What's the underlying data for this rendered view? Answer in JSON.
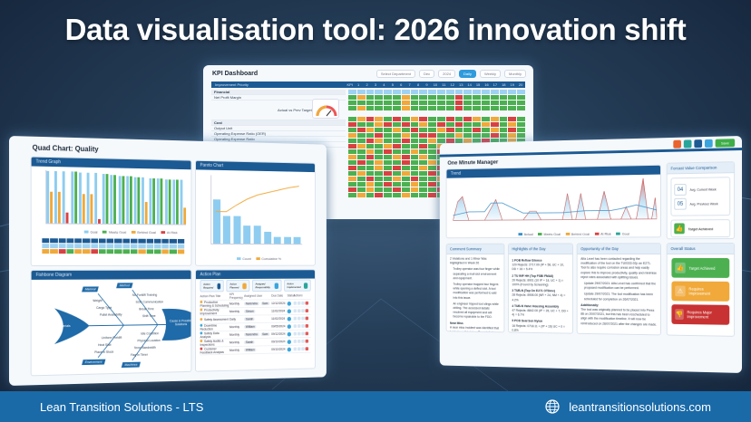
{
  "headline": "Data visualisation tool: 2026 innovation shift",
  "footer": {
    "company": "Lean Transition Solutions - LTS",
    "website": "leantransitionsolutions.com",
    "icon": "globe-icon"
  },
  "colors": {
    "brand_blue": "#1c5a93",
    "footer_blue": "#1a6aa8",
    "green": "#4cb050",
    "amber": "#f0a93a",
    "red": "#d94141",
    "light_blue": "#8ecdf0"
  },
  "kpi_dashboard": {
    "title": "KPI Dashboard",
    "filters": {
      "department_placeholder": "Select Department",
      "month": "Dec",
      "year": "2024",
      "views": [
        "Daily",
        "Weekly",
        "Monthly"
      ],
      "active_view": "Daily"
    },
    "header": {
      "label": "Improvement Priority",
      "kpi_col": "KPI",
      "days": [
        "1",
        "2",
        "3",
        "4",
        "5",
        "6",
        "7",
        "8",
        "9",
        "10",
        "11",
        "12",
        "13",
        "14",
        "15",
        "16",
        "17",
        "18",
        "19",
        "20"
      ]
    },
    "sections": [
      {
        "name": "Financial",
        "rows": [
          "Net Profit Margin"
        ],
        "metric": {
          "label": "Actual vs Prev Target",
          "value": "10%"
        }
      },
      {
        "name": "Cost",
        "rows": [
          "Output Unit",
          "Operating Expense Ratio (OER)",
          "Operating Expense Ratio",
          "Operating Expense Ratio"
        ]
      }
    ],
    "row_labels": [
      "Tar.",
      "Act.",
      "Var.",
      "Var. %"
    ]
  },
  "quad_chart": {
    "title": "Quad Chart: Quality",
    "trend_graph": {
      "title": "Trend Graph",
      "y_label": "Percentage",
      "x_label": "Weeks",
      "legend": [
        "Goal",
        "Meets Goal",
        "Behind Goal",
        "At Risk"
      ]
    },
    "pareto_chart": {
      "title": "Pareto Chart",
      "y_label": "Frequency",
      "y2_label": "Cumulative %",
      "x_label": "Cause",
      "legend": [
        "Count",
        "Cumulative %"
      ]
    },
    "fishbone": {
      "title": "Fishbone Diagram",
      "head": "Cause & Possible Solutions",
      "tail": "Materials",
      "categories": {
        "top_left": "Material",
        "top_right": "Method",
        "bottom_left": "Environment",
        "bottom_right": "Machines"
      },
      "causes_top_left": [
        "Weight",
        "Cargo Type",
        "Pallet Availability"
      ],
      "causes_top_right": [
        "No Forklift Training",
        "SOC Communication",
        "Break Time",
        "Shift Time"
      ],
      "causes_bottom_left": [
        "Uniform Forklift",
        "Heat Slab",
        "Place in Stock"
      ],
      "causes_bottom_right": [
        "Idle Condition",
        "Physical Location",
        "Temp Bandwidth",
        "Flag In Timer"
      ]
    },
    "action_plan": {
      "title": "Action Plan",
      "buttons": [
        "Action Required",
        "Action Planned",
        "Assigned Responsibility",
        "Action Implemented",
        "Action Reviewed & Closed Out"
      ],
      "columns": [
        "Action Plan Title",
        "KPI Frequency",
        "Assigned User",
        "Due Date",
        "Status",
        "Actions"
      ],
      "rows": [
        {
          "title": "Production Planning & Scheduling",
          "freq": "Monthly",
          "users": [
            "Narendra",
            "Sam"
          ],
          "due": "12/12/2024",
          "dot": "#f0a93a"
        },
        {
          "title": "Productivity Improvement",
          "freq": "Monthly",
          "users": [
            "Simon"
          ],
          "due": "11/02/2024",
          "dot": "#f0a93a"
        },
        {
          "title": "Safety Assessment",
          "freq": "Daily",
          "users": [
            "Sarah"
          ],
          "due": "11/02/2024",
          "dot": "#f0a93a"
        },
        {
          "title": "Downtime Reduction",
          "freq": "Monthly",
          "users": [
            "William"
          ],
          "due": "09/05/2024",
          "dot": "#3aa5dc"
        },
        {
          "title": "Safety Data Analysis",
          "freq": "Monthly",
          "users": [
            "Narendra",
            "Sam"
          ],
          "due": "09/12/2024",
          "dot": "#3aa5dc"
        },
        {
          "title": "Safety Audits & Inspections",
          "freq": "Monthly",
          "users": [
            "Sarah"
          ],
          "due": "09/10/2024",
          "dot": "#f0a93a"
        },
        {
          "title": "Customer Feedback Analysis",
          "freq": "Monthly",
          "users": [
            "William"
          ],
          "due": "09/10/2024",
          "dot": "#d94141"
        }
      ]
    }
  },
  "one_minute_manager": {
    "title": "One Minute Manager",
    "chart_title": "Trend",
    "chart_x_label": "Dates",
    "chart_legend": [
      "Actual",
      "Meets Goal",
      "Behind Goal",
      "At Risk",
      "Goal"
    ],
    "toolbar": {
      "save_label": "Save"
    },
    "forecast": {
      "title": "Forcast Value Comparison",
      "current_value": "04",
      "current_label": "Avg. Current Week",
      "previous_value": "05",
      "previous_label": "Avg. Previous Week",
      "target_label": "Target Achieved"
    },
    "comment_summary": {
      "title": "Comment Summary",
      "lead": "2 Violations and 1 Minor Was Highlighted in Week 26",
      "bullets": [
        "Trolley operator was four finger while separating a mail slot environment and equipment.",
        "Trolley operator trapped four fingers while opening a deflect slot. A tool modification was performed to add into this issue.",
        "An engineer tripped tool slings while drilling. The accessed details resolved all equipment and will become repairable to the FDO."
      ],
      "near_miss_title": "Near Miss",
      "near_miss_text": "A near miss incident was identified that but but result in injury. Reports help resources are being reviewed. Engineers are on top of it."
    },
    "highlights": {
      "title": "Highlights of the Day",
      "items": [
        {
          "head": "1 POB Reflow Silence",
          "body": "120 Rejects: 2717.00 (IP + 56, UC + 10, DD + 16 = 5.4%"
        },
        {
          "head": "2 TU IMF HH (Top FSBI FMA8)",
          "body": "20 Rejects: 8901 (10 IP + 18, UC + 1) = 100% (Found by Screening)"
        },
        {
          "head": "3 TUB-N (Top On E271 OTDme)",
          "body": "28 Rejects: 8908.00 (NR + 24, NM + 4) = 4.2%"
        },
        {
          "head": "4 TUB-N Valve Housing Assembly",
          "body": "47 Rejects: 8842.00 (IP + 26, UC + 7, DD + 4) = 6.7%"
        },
        {
          "head": "5 POD Seal Sen Nylon",
          "body": "16 Rejects: 0718.11 + (IP + 16) UC + 0 = 0.8%"
        }
      ]
    },
    "opportunity": {
      "title": "Opportunity of the Day",
      "body": "Alfa Level has been contacted regarding the modification of the tool on the TU0333-02p an E271. Tool to also require corrosion areas and help easily explore this to improve productivity, quality and minimise reject rates associated with splitting issues.",
      "updates": [
        "Update 29/07/2021: Alfa Level has confirmed that the proposed modification can be performed.",
        "Update 29/07/2021: The tool modification has been scheduled for completion on 26/07/2021."
      ],
      "additional_title": "Additionally:",
      "additional_body": "The tool was originally planned to be placed into Press 86 on 20/07/2021, but this has been rescheduled to align with the modification timeline. It will now be reintroduced on 26/07/2021 after the changes are made."
    },
    "overall_status": {
      "title": "Overall Status",
      "items": [
        {
          "label": "Target Achieved",
          "color": "#4cb050",
          "icon": "thumbs-up-icon",
          "glyph": "👍"
        },
        {
          "label": "Requires Improvement",
          "color": "#f0a93a",
          "icon": "warning-icon",
          "glyph": "⚠"
        },
        {
          "label": "Requires Major Improvement",
          "color": "#c83232",
          "icon": "thumbs-down-icon",
          "glyph": "👎"
        }
      ]
    }
  }
}
